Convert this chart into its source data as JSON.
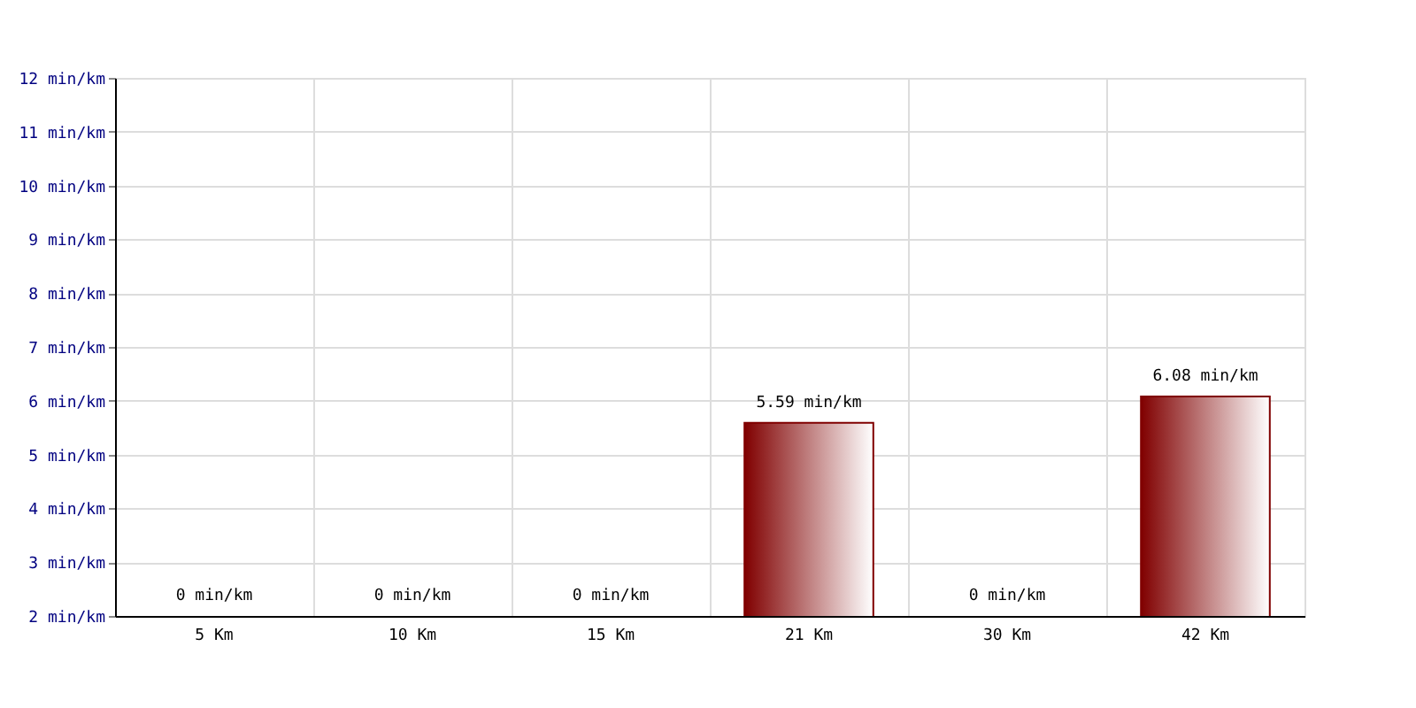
{
  "chart_data": {
    "type": "bar",
    "categories": [
      "5 Km",
      "10 Km",
      "15 Km",
      "21 Km",
      "30 Km",
      "42 Km"
    ],
    "values": [
      null,
      null,
      null,
      5.59,
      null,
      6.08
    ],
    "value_labels": [
      "0 min/km",
      "0 min/km",
      "0 min/km",
      "5.59 min/km",
      "0 min/km",
      "6.08 min/km"
    ],
    "color": "#800000",
    "ylim": [
      2,
      12
    ],
    "yticks": [
      {
        "value": 2,
        "label": "2 min/km"
      },
      {
        "value": 3,
        "label": "3 min/km"
      },
      {
        "value": 4,
        "label": "4 min/km"
      },
      {
        "value": 5,
        "label": "5 min/km"
      },
      {
        "value": 6,
        "label": "6 min/km"
      },
      {
        "value": 7,
        "label": "7 min/km"
      },
      {
        "value": 8,
        "label": "8 min/km"
      },
      {
        "value": 9,
        "label": "9 min/km"
      },
      {
        "value": 10,
        "label": "10 min/km"
      },
      {
        "value": 11,
        "label": "11 min/km"
      },
      {
        "value": 12,
        "label": "12 min/km"
      }
    ],
    "grid": true
  }
}
